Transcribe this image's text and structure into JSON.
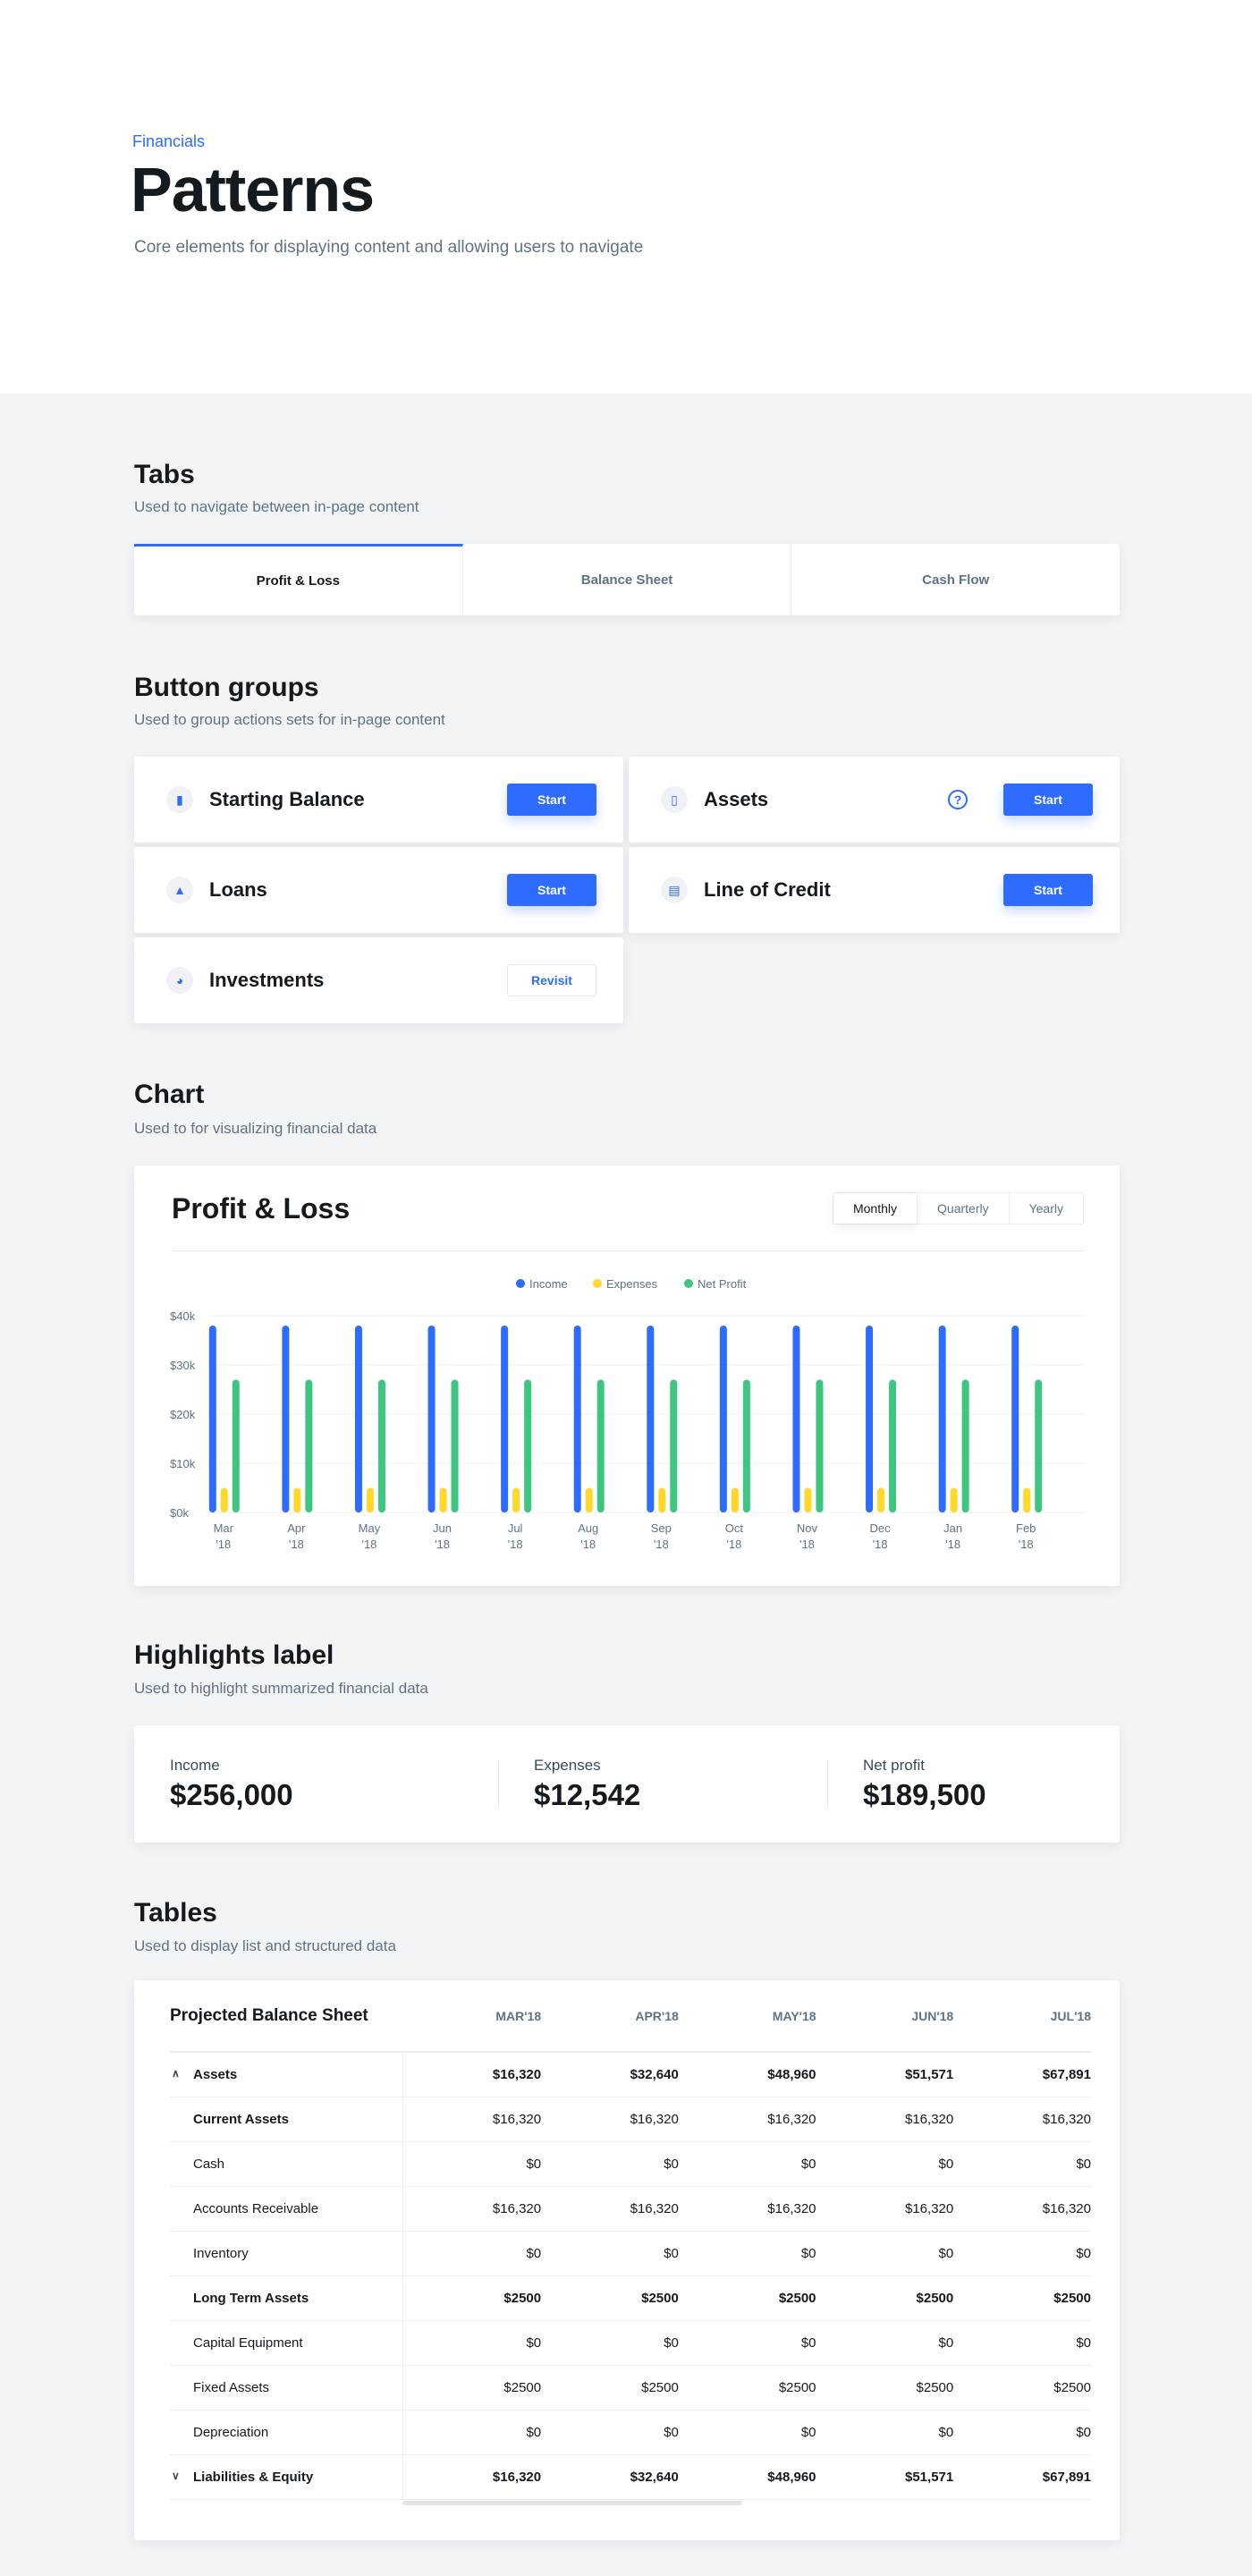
{
  "header": {
    "eyebrow": "Financials",
    "title": "Patterns",
    "subtitle": "Core elements for displaying content and allowing users to navigate"
  },
  "tabs_section": {
    "title": "Tabs",
    "subtitle": "Used to navigate between in-page content",
    "tabs": [
      {
        "label": "Profit & Loss",
        "active": true
      },
      {
        "label": "Balance Sheet"
      },
      {
        "label": "Cash Flow"
      }
    ]
  },
  "buttons_section": {
    "title": "Button groups",
    "subtitle": "Used to group actions sets for in-page content",
    "items": [
      {
        "label": "Starting Balance",
        "icon": "chart-icon",
        "button": "Start"
      },
      {
        "label": "Assets",
        "icon": "document-icon",
        "button": "Start",
        "help": "?"
      },
      {
        "label": "Loans",
        "icon": "bank-icon",
        "button": "Start"
      },
      {
        "label": "Line of Credit",
        "icon": "register-icon",
        "button": "Start"
      },
      {
        "label": "Investments",
        "icon": "pie-icon",
        "button": "Revisit"
      }
    ]
  },
  "chart_section": {
    "title": "Chart",
    "subtitle": "Used to for visualizing financial data",
    "card_title": "Profit & Loss",
    "periods": [
      "Monthly",
      "Quarterly",
      "Yearly"
    ],
    "selected_period": "Monthly"
  },
  "chart_data": {
    "type": "bar",
    "categories": [
      "Mar '18",
      "Apr '18",
      "May '18",
      "Jun '18",
      "Jul '18",
      "Aug '18",
      "Sep '18",
      "Oct '18",
      "Nov '18",
      "Dec '18",
      "Jan '18",
      "Feb '18"
    ],
    "series": [
      {
        "name": "Income",
        "color": "#2e6bff",
        "values": [
          38000,
          38000,
          38000,
          38000,
          38000,
          38000,
          38000,
          38000,
          38000,
          38000,
          38000,
          38000
        ]
      },
      {
        "name": "Expenses",
        "color": "#ffd829",
        "values": [
          5000,
          5000,
          5000,
          5000,
          5000,
          5000,
          5000,
          5000,
          5000,
          5000,
          5000,
          5000
        ]
      },
      {
        "name": "Net Profit",
        "color": "#3cc67f",
        "values": [
          27000,
          27000,
          27000,
          27000,
          27000,
          27000,
          27000,
          27000,
          27000,
          27000,
          27000,
          27000
        ]
      }
    ],
    "yticks": [
      "$0k",
      "$10k",
      "$20k",
      "$30k",
      "$40k"
    ],
    "ylim": [
      0,
      40000
    ],
    "grid": true,
    "legend": "top-center"
  },
  "highlights_section": {
    "title": "Highlights label",
    "subtitle": "Used to highlight summarized financial data",
    "items": [
      {
        "label": "Income",
        "value": "$256,000"
      },
      {
        "label": "Expenses",
        "value": "$12,542"
      },
      {
        "label": "Net profit",
        "value": "$189,500"
      }
    ]
  },
  "tables_section": {
    "title": "Tables",
    "subtitle": "Used to display list and structured data",
    "table_title": "Projected Balance Sheet",
    "columns": [
      "MAR'18",
      "APR'18",
      "MAY'18",
      "JUN'18",
      "JUL'18"
    ],
    "rows": [
      {
        "label": "Assets",
        "bold": true,
        "caret": "^",
        "values": [
          "$16,320",
          "$32,640",
          "$48,960",
          "$51,571",
          "$67,891"
        ]
      },
      {
        "label": "Current Assets",
        "bold": "label",
        "values": [
          "$16,320",
          "$16,320",
          "$16,320",
          "$16,320",
          "$16,320"
        ]
      },
      {
        "label": "Cash",
        "values": [
          "$0",
          "$0",
          "$0",
          "$0",
          "$0"
        ]
      },
      {
        "label": "Accounts Receivable",
        "values": [
          "$16,320",
          "$16,320",
          "$16,320",
          "$16,320",
          "$16,320"
        ]
      },
      {
        "label": "Inventory",
        "values": [
          "$0",
          "$0",
          "$0",
          "$0",
          "$0"
        ]
      },
      {
        "label": "Long Term Assets",
        "bold": true,
        "values": [
          "$2500",
          "$2500",
          "$2500",
          "$2500",
          "$2500"
        ]
      },
      {
        "label": "Capital Equipment",
        "values": [
          "$0",
          "$0",
          "$0",
          "$0",
          "$0"
        ]
      },
      {
        "label": "Fixed Assets",
        "values": [
          "$2500",
          "$2500",
          "$2500",
          "$2500",
          "$2500"
        ]
      },
      {
        "label": "Depreciation",
        "values": [
          "$0",
          "$0",
          "$0",
          "$0",
          "$0"
        ]
      },
      {
        "label": "Liabilities & Equity",
        "bold": true,
        "caret": "v",
        "values": [
          "$16,320",
          "$32,640",
          "$48,960",
          "$51,571",
          "$67,891"
        ]
      }
    ]
  }
}
